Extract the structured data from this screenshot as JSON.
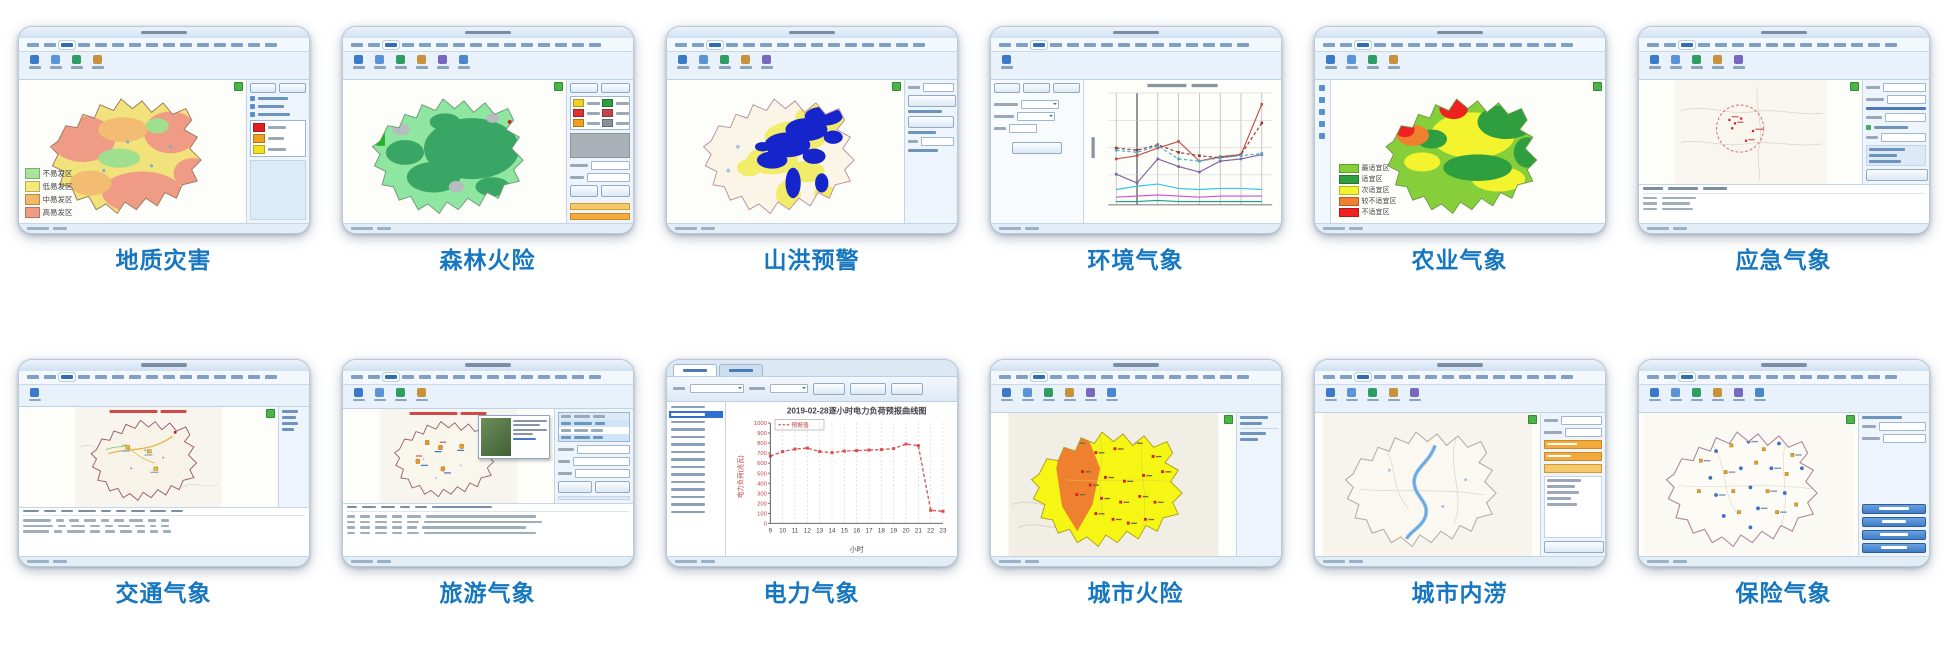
{
  "page": {
    "background": "#ffffff",
    "caption_color": "#1677c0"
  },
  "thumbnails": [
    {
      "id": "geo-disaster",
      "label": "地质灾害",
      "legend": [
        {
          "color": "#a7e59b",
          "label": "不易发区"
        },
        {
          "color": "#f5e97c",
          "label": "低易发区"
        },
        {
          "color": "#f3b968",
          "label": "中易发区"
        },
        {
          "color": "#ef9b85",
          "label": "高易发区"
        }
      ]
    },
    {
      "id": "forest-fire",
      "label": "森林火险"
    },
    {
      "id": "flash-flood-warning",
      "label": "山洪预警"
    },
    {
      "id": "environment-weather",
      "label": "环境气象"
    },
    {
      "id": "agriculture-weather",
      "label": "农业气象",
      "legend": [
        {
          "color": "#86cf3a",
          "label": "最适宜区"
        },
        {
          "color": "#2f9e3e",
          "label": "适宜区"
        },
        {
          "color": "#f3f32e",
          "label": "次适宜区"
        },
        {
          "color": "#ef8030",
          "label": "较不适宜区"
        },
        {
          "color": "#ee2020",
          "label": "不适宜区"
        }
      ]
    },
    {
      "id": "emergency-weather",
      "label": "应急气象"
    },
    {
      "id": "traffic-weather",
      "label": "交通气象"
    },
    {
      "id": "tourism-weather",
      "label": "旅游气象"
    },
    {
      "id": "power-weather",
      "label": "电力气象"
    },
    {
      "id": "urban-fire",
      "label": "城市火险"
    },
    {
      "id": "urban-waterlogging",
      "label": "城市内涝"
    },
    {
      "id": "insurance-weather",
      "label": "保险气象"
    }
  ],
  "chart_data": [
    {
      "type": "line",
      "title": "2019-02-28逐小时电力负荷预报曲线图",
      "xlabel": "小时",
      "ylabel": "电力负荷(兆瓦)",
      "legend": [
        "预报值"
      ],
      "legend_position": "top-left",
      "x": [
        9,
        10,
        11,
        12,
        13,
        14,
        15,
        16,
        17,
        18,
        19,
        20,
        21,
        22,
        23
      ],
      "values": [
        670,
        715,
        740,
        750,
        715,
        705,
        720,
        725,
        730,
        735,
        745,
        790,
        775,
        130,
        120
      ],
      "ylim": [
        0,
        1000
      ],
      "y_ticks": [
        0,
        100,
        200,
        300,
        400,
        500,
        600,
        700,
        800,
        900,
        1000
      ],
      "grid": "vertical-dashed",
      "line_color": "#d85050",
      "line_style": "dashed-with-markers"
    },
    {
      "type": "line",
      "title": "",
      "x": [
        1,
        2,
        3,
        4,
        5,
        6,
        7,
        8
      ],
      "ylim": [
        0,
        100
      ],
      "grid": "vertical",
      "series": [
        {
          "color": "#c0504d",
          "values": [
            42,
            45,
            52,
            58,
            40,
            44,
            46,
            92
          ]
        },
        {
          "color": "#943634",
          "dashed": true,
          "values": [
            52,
            50,
            55,
            48,
            45,
            43,
            46,
            75
          ]
        },
        {
          "color": "#8064a2",
          "values": [
            28,
            20,
            42,
            35,
            30,
            40,
            42,
            46
          ]
        },
        {
          "color": "#4bacc6",
          "dashed": true,
          "values": [
            50,
            48,
            54,
            42,
            40,
            43,
            45,
            47
          ]
        },
        {
          "color": "#31c7e8",
          "values": [
            14,
            17,
            19,
            15,
            14,
            15,
            15,
            14
          ]
        },
        {
          "color": "#d24fd2",
          "values": [
            7,
            8,
            9,
            8,
            7,
            8,
            8,
            8
          ]
        },
        {
          "color": "#1f9e8e",
          "values": [
            3,
            3,
            4,
            3,
            3,
            3,
            3,
            3
          ]
        }
      ]
    }
  ]
}
